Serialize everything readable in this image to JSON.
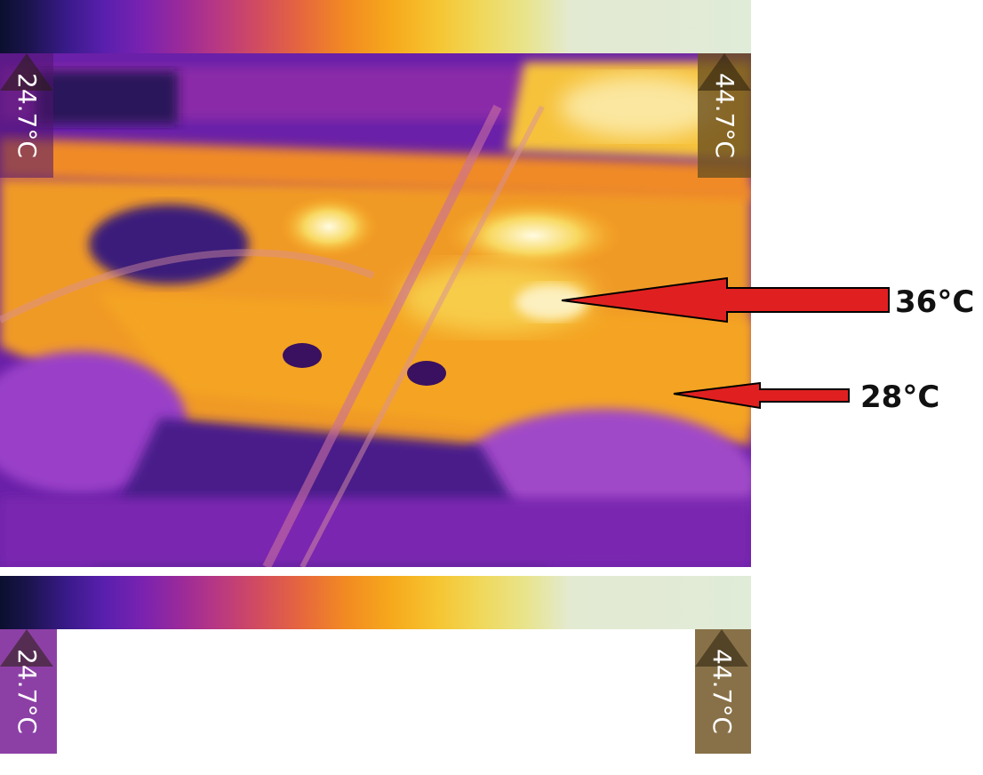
{
  "scale": {
    "min_label": "24.7°C",
    "max_label": "44.7°C"
  },
  "annotations": [
    {
      "label": "36°C",
      "arrow_color": "#e02020"
    },
    {
      "label": "28°C",
      "arrow_color": "#e02020"
    }
  ],
  "palette": [
    "#0b0f2e",
    "#3a1a8a",
    "#7a22b0",
    "#b83882",
    "#e6663e",
    "#f6a81c",
    "#f0d85a",
    "#e0ebd8"
  ]
}
